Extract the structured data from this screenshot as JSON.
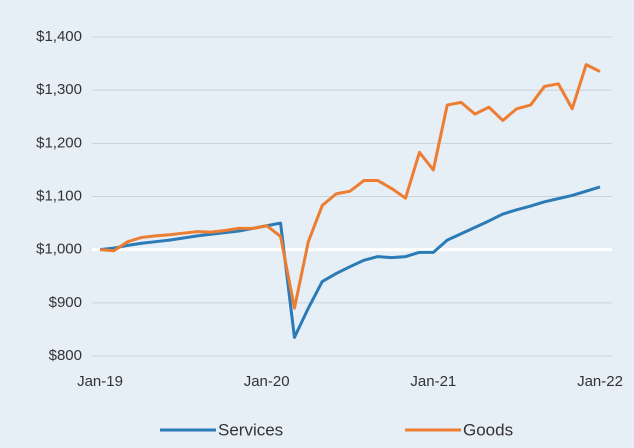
{
  "chart_data": {
    "type": "line",
    "categories": [
      "Jan-19",
      null,
      null,
      null,
      null,
      null,
      null,
      null,
      null,
      null,
      null,
      null,
      "Jan-20",
      null,
      null,
      null,
      null,
      null,
      null,
      null,
      null,
      null,
      null,
      null,
      "Jan-21",
      null,
      null,
      null,
      null,
      null,
      null,
      null,
      null,
      null,
      null,
      null,
      "Jan-22"
    ],
    "series": [
      {
        "name": "Services",
        "color": "#2a7bb6",
        "values": [
          1000,
          1003,
          1008,
          1012,
          1015,
          1018,
          1022,
          1026,
          1029,
          1032,
          1035,
          1040,
          1045,
          1050,
          835,
          890,
          940,
          955,
          968,
          980,
          987,
          985,
          987,
          995,
          995,
          1018,
          1030,
          1042,
          1054,
          1067,
          1075,
          1082,
          1090,
          1096,
          1102,
          1110,
          1118
        ]
      },
      {
        "name": "Goods",
        "color": "#ed7d31",
        "values": [
          1000,
          998,
          1015,
          1023,
          1026,
          1028,
          1031,
          1034,
          1033,
          1036,
          1040,
          1040,
          1045,
          1025,
          890,
          1015,
          1083,
          1105,
          1110,
          1130,
          1130,
          1115,
          1097,
          1183,
          1150,
          1272,
          1277,
          1255,
          1268,
          1243,
          1265,
          1272,
          1307,
          1312,
          1265,
          1348,
          1335
        ]
      }
    ],
    "ylim": [
      800,
      1400
    ],
    "yticks": [
      {
        "value": 800,
        "label": "$800"
      },
      {
        "value": 900,
        "label": "$900"
      },
      {
        "value": 1000,
        "label": "$1,000"
      },
      {
        "value": 1100,
        "label": "$1,100"
      },
      {
        "value": 1200,
        "label": "$1,200"
      },
      {
        "value": 1300,
        "label": "$1,300"
      },
      {
        "value": 1400,
        "label": "$1,400"
      }
    ],
    "grid": true,
    "reference_line": 1000,
    "legend": "bottom"
  }
}
